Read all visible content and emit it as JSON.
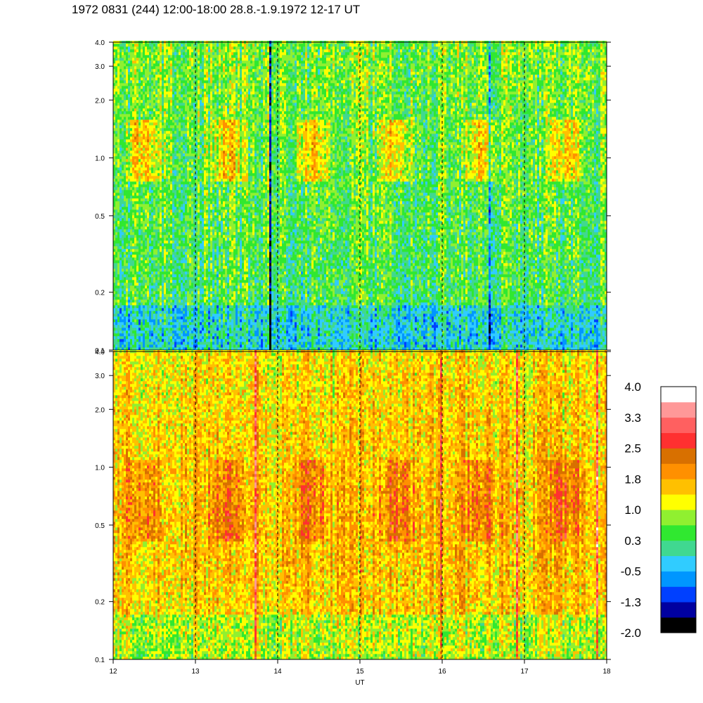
{
  "title": "1972 0831 (244) 12:00-18:00 28.8.-1.9.1972  12-17 UT",
  "chart_data": {
    "type": "heatmap",
    "xlabel": "UT",
    "xlim": [
      12,
      18
    ],
    "xticks": [
      "12",
      "13",
      "14",
      "15",
      "16",
      "17",
      "18"
    ],
    "x_dashed_lines": [
      13,
      14,
      15,
      16,
      17
    ],
    "panels": [
      {
        "yscale": "log",
        "ylim": [
          0.1,
          4.0
        ],
        "yticks": [
          {
            "value": 0.1,
            "label": "0.1"
          },
          {
            "value": 0.2,
            "label": "0.2"
          },
          {
            "value": 0.5,
            "label": "0.5"
          },
          {
            "value": 1.0,
            "label": "1.0"
          },
          {
            "value": 2.0,
            "label": "2.0"
          },
          {
            "value": 3.0,
            "label": "3.0"
          },
          {
            "value": 4.0,
            "label": "4.0"
          }
        ],
        "dominant_level": 0.3
      },
      {
        "yscale": "log",
        "ylim": [
          0.1,
          4.0
        ],
        "yticks": [
          {
            "value": 0.1,
            "label": "0.1"
          },
          {
            "value": 0.2,
            "label": "0.2"
          },
          {
            "value": 0.5,
            "label": "0.5"
          },
          {
            "value": 1.0,
            "label": "1.0"
          },
          {
            "value": 2.0,
            "label": "2.0"
          },
          {
            "value": 3.0,
            "label": "3.0"
          },
          {
            "value": 4.0,
            "label": "4.0"
          }
        ],
        "dominant_level": 1.6
      }
    ],
    "colorbar": {
      "colors": [
        "#000000",
        "#0000a0",
        "#0040ff",
        "#0096ff",
        "#30ccff",
        "#40d890",
        "#30e830",
        "#90f030",
        "#ffff00",
        "#ffc000",
        "#ff9000",
        "#d87000",
        "#ff3030",
        "#ff6060",
        "#ff9898",
        "#ffffff"
      ],
      "labels": [
        "4.0",
        "3.3",
        "2.5",
        "1.8",
        "1.0",
        "0.3",
        "-0.5",
        "-1.3",
        "-2.0"
      ],
      "range": [
        -2.0,
        4.0
      ]
    }
  }
}
